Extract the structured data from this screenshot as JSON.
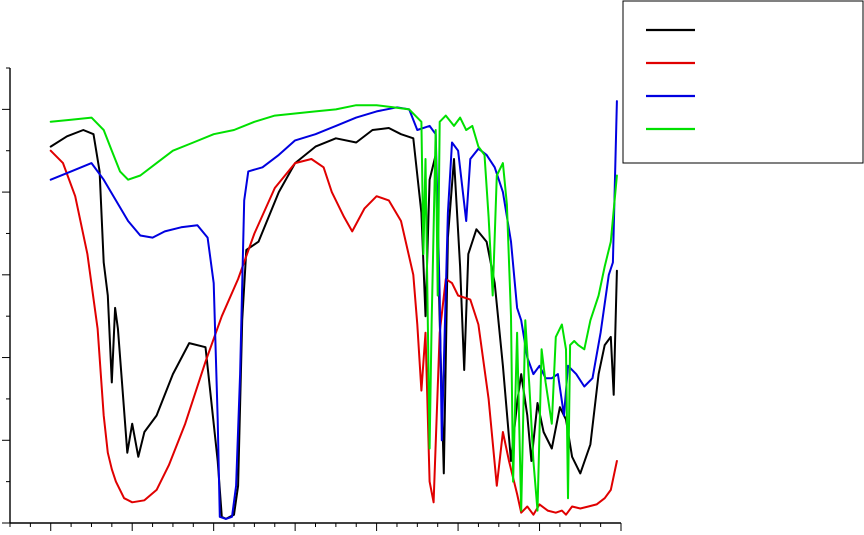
{
  "chart_data": {
    "type": "line",
    "title": "",
    "xlabel": "",
    "ylabel": "",
    "xlim": [
      0,
      15
    ],
    "ylim": [
      0,
      11
    ],
    "x_tick_step": 1,
    "y_tick_step": 1,
    "grid": false,
    "legend_position": "top-right",
    "series": [
      {
        "color": "#000000",
        "points": [
          [
            1,
            9.1
          ],
          [
            1.4,
            9.35
          ],
          [
            1.8,
            9.5
          ],
          [
            2.05,
            9.4
          ],
          [
            2.2,
            8.5
          ],
          [
            2.3,
            6.3
          ],
          [
            2.4,
            5.5
          ],
          [
            2.5,
            3.4
          ],
          [
            2.58,
            5.2
          ],
          [
            2.65,
            4.7
          ],
          [
            2.75,
            3.4
          ],
          [
            2.88,
            1.7
          ],
          [
            3,
            2.4
          ],
          [
            3.15,
            1.6
          ],
          [
            3.3,
            2.2
          ],
          [
            3.6,
            2.6
          ],
          [
            4,
            3.6
          ],
          [
            4.4,
            4.35
          ],
          [
            4.8,
            4.25
          ],
          [
            5.1,
            1.5
          ],
          [
            5.2,
            0.15
          ],
          [
            5.3,
            0.1
          ],
          [
            5.5,
            0.2
          ],
          [
            5.6,
            0.9
          ],
          [
            5.7,
            4.9
          ],
          [
            5.8,
            6.6
          ],
          [
            6.1,
            6.8
          ],
          [
            6.6,
            8.0
          ],
          [
            7,
            8.7
          ],
          [
            7.5,
            9.1
          ],
          [
            8,
            9.3
          ],
          [
            8.5,
            9.2
          ],
          [
            8.9,
            9.5
          ],
          [
            9.3,
            9.55
          ],
          [
            9.6,
            9.4
          ],
          [
            9.9,
            9.3
          ],
          [
            10.1,
            7.5
          ],
          [
            10.2,
            5.0
          ],
          [
            10.3,
            8.3
          ],
          [
            10.45,
            8.9
          ],
          [
            10.55,
            4.9
          ],
          [
            10.65,
            1.2
          ],
          [
            10.75,
            6.9
          ],
          [
            10.9,
            8.8
          ],
          [
            11.05,
            6.2
          ],
          [
            11.15,
            3.7
          ],
          [
            11.25,
            6.5
          ],
          [
            11.45,
            7.1
          ],
          [
            11.7,
            6.8
          ],
          [
            11.9,
            5.8
          ],
          [
            12.1,
            3.8
          ],
          [
            12.3,
            1.5
          ],
          [
            12.45,
            2.9
          ],
          [
            12.55,
            3.6
          ],
          [
            12.7,
            2.6
          ],
          [
            12.8,
            1.5
          ],
          [
            12.95,
            2.9
          ],
          [
            13.1,
            2.2
          ],
          [
            13.3,
            1.8
          ],
          [
            13.5,
            2.8
          ],
          [
            13.65,
            2.5
          ],
          [
            13.8,
            1.6
          ],
          [
            14.0,
            1.2
          ],
          [
            14.25,
            1.9
          ],
          [
            14.45,
            3.6
          ],
          [
            14.6,
            4.3
          ],
          [
            14.75,
            4.5
          ],
          [
            14.82,
            3.1
          ],
          [
            14.9,
            6.1
          ]
        ]
      },
      {
        "color": "#e00000",
        "points": [
          [
            1,
            9.0
          ],
          [
            1.3,
            8.7
          ],
          [
            1.6,
            7.9
          ],
          [
            1.9,
            6.5
          ],
          [
            2.15,
            4.7
          ],
          [
            2.3,
            2.6
          ],
          [
            2.4,
            1.7
          ],
          [
            2.5,
            1.3
          ],
          [
            2.6,
            1.0
          ],
          [
            2.8,
            0.6
          ],
          [
            3.0,
            0.5
          ],
          [
            3.3,
            0.55
          ],
          [
            3.6,
            0.8
          ],
          [
            3.9,
            1.4
          ],
          [
            4.3,
            2.4
          ],
          [
            4.8,
            3.9
          ],
          [
            5.2,
            5.0
          ],
          [
            5.6,
            5.9
          ],
          [
            6.0,
            7.0
          ],
          [
            6.5,
            8.1
          ],
          [
            7,
            8.7
          ],
          [
            7.4,
            8.8
          ],
          [
            7.7,
            8.6
          ],
          [
            7.9,
            8.0
          ],
          [
            8.2,
            7.4
          ],
          [
            8.4,
            7.05
          ],
          [
            8.7,
            7.6
          ],
          [
            9.0,
            7.9
          ],
          [
            9.3,
            7.8
          ],
          [
            9.6,
            7.3
          ],
          [
            9.9,
            6.0
          ],
          [
            10.0,
            4.8
          ],
          [
            10.1,
            3.2
          ],
          [
            10.2,
            4.6
          ],
          [
            10.3,
            1.0
          ],
          [
            10.4,
            0.5
          ],
          [
            10.55,
            4.6
          ],
          [
            10.7,
            5.9
          ],
          [
            10.85,
            5.8
          ],
          [
            11.0,
            5.5
          ],
          [
            11.3,
            5.4
          ],
          [
            11.5,
            4.8
          ],
          [
            11.75,
            3.0
          ],
          [
            11.95,
            0.9
          ],
          [
            12.1,
            2.2
          ],
          [
            12.25,
            1.5
          ],
          [
            12.45,
            0.7
          ],
          [
            12.55,
            0.25
          ],
          [
            12.7,
            0.4
          ],
          [
            12.85,
            0.2
          ],
          [
            13.0,
            0.45
          ],
          [
            13.2,
            0.3
          ],
          [
            13.4,
            0.25
          ],
          [
            13.55,
            0.3
          ],
          [
            13.65,
            0.2
          ],
          [
            13.8,
            0.4
          ],
          [
            14.0,
            0.35
          ],
          [
            14.2,
            0.4
          ],
          [
            14.4,
            0.45
          ],
          [
            14.6,
            0.6
          ],
          [
            14.75,
            0.8
          ],
          [
            14.9,
            1.5
          ]
        ]
      },
      {
        "color": "#0000e0",
        "points": [
          [
            1,
            8.3
          ],
          [
            1.5,
            8.5
          ],
          [
            2.0,
            8.7
          ],
          [
            2.3,
            8.3
          ],
          [
            2.6,
            7.8
          ],
          [
            2.9,
            7.3
          ],
          [
            3.2,
            6.95
          ],
          [
            3.5,
            6.9
          ],
          [
            3.8,
            7.05
          ],
          [
            4.2,
            7.15
          ],
          [
            4.6,
            7.2
          ],
          [
            4.85,
            6.9
          ],
          [
            5.0,
            5.8
          ],
          [
            5.1,
            2.5
          ],
          [
            5.15,
            0.15
          ],
          [
            5.3,
            0.1
          ],
          [
            5.45,
            0.15
          ],
          [
            5.55,
            0.9
          ],
          [
            5.65,
            3.6
          ],
          [
            5.75,
            7.8
          ],
          [
            5.85,
            8.5
          ],
          [
            6.2,
            8.6
          ],
          [
            6.6,
            8.9
          ],
          [
            7,
            9.25
          ],
          [
            7.5,
            9.4
          ],
          [
            8,
            9.6
          ],
          [
            8.5,
            9.8
          ],
          [
            9,
            9.95
          ],
          [
            9.5,
            10.05
          ],
          [
            9.8,
            10.0
          ],
          [
            10.0,
            9.5
          ],
          [
            10.3,
            9.6
          ],
          [
            10.45,
            9.4
          ],
          [
            10.55,
            5.5
          ],
          [
            10.6,
            2.0
          ],
          [
            10.75,
            7.5
          ],
          [
            10.85,
            9.2
          ],
          [
            11.0,
            9.0
          ],
          [
            11.2,
            7.3
          ],
          [
            11.3,
            8.8
          ],
          [
            11.5,
            9.05
          ],
          [
            11.7,
            8.9
          ],
          [
            11.9,
            8.6
          ],
          [
            12.1,
            8.0
          ],
          [
            12.3,
            6.8
          ],
          [
            12.45,
            5.2
          ],
          [
            12.55,
            4.9
          ],
          [
            12.7,
            4.0
          ],
          [
            12.85,
            3.6
          ],
          [
            13.0,
            3.8
          ],
          [
            13.15,
            3.5
          ],
          [
            13.3,
            3.5
          ],
          [
            13.45,
            3.6
          ],
          [
            13.6,
            2.6
          ],
          [
            13.7,
            3.8
          ],
          [
            13.9,
            3.6
          ],
          [
            14.1,
            3.3
          ],
          [
            14.3,
            3.5
          ],
          [
            14.5,
            4.6
          ],
          [
            14.7,
            6.0
          ],
          [
            14.8,
            6.3
          ],
          [
            14.9,
            10.2
          ]
        ]
      },
      {
        "color": "#00e000",
        "points": [
          [
            1,
            9.7
          ],
          [
            1.5,
            9.75
          ],
          [
            2.0,
            9.8
          ],
          [
            2.3,
            9.5
          ],
          [
            2.5,
            9.0
          ],
          [
            2.7,
            8.5
          ],
          [
            2.9,
            8.3
          ],
          [
            3.2,
            8.4
          ],
          [
            3.6,
            8.7
          ],
          [
            4.0,
            9.0
          ],
          [
            4.5,
            9.2
          ],
          [
            5.0,
            9.4
          ],
          [
            5.5,
            9.5
          ],
          [
            6,
            9.7
          ],
          [
            6.5,
            9.85
          ],
          [
            7,
            9.9
          ],
          [
            7.5,
            9.95
          ],
          [
            8,
            10.0
          ],
          [
            8.5,
            10.1
          ],
          [
            9,
            10.1
          ],
          [
            9.4,
            10.05
          ],
          [
            9.8,
            10.0
          ],
          [
            10.1,
            9.7
          ],
          [
            10.15,
            6.5
          ],
          [
            10.2,
            8.8
          ],
          [
            10.3,
            1.8
          ],
          [
            10.35,
            4.8
          ],
          [
            10.45,
            9.5
          ],
          [
            10.5,
            5.5
          ],
          [
            10.55,
            9.7
          ],
          [
            10.7,
            9.85
          ],
          [
            10.9,
            9.6
          ],
          [
            11.05,
            9.8
          ],
          [
            11.2,
            9.5
          ],
          [
            11.35,
            9.6
          ],
          [
            11.5,
            9.1
          ],
          [
            11.65,
            8.9
          ],
          [
            11.75,
            7.4
          ],
          [
            11.85,
            5.5
          ],
          [
            11.95,
            8.4
          ],
          [
            12.1,
            8.7
          ],
          [
            12.2,
            7.7
          ],
          [
            12.3,
            5.0
          ],
          [
            12.35,
            1.0
          ],
          [
            12.45,
            4.6
          ],
          [
            12.55,
            0.3
          ],
          [
            12.65,
            4.9
          ],
          [
            12.75,
            3.3
          ],
          [
            12.85,
            1.5
          ],
          [
            12.95,
            0.3
          ],
          [
            13.05,
            4.2
          ],
          [
            13.15,
            3.4
          ],
          [
            13.3,
            2.4
          ],
          [
            13.4,
            4.5
          ],
          [
            13.55,
            4.8
          ],
          [
            13.65,
            4.2
          ],
          [
            13.7,
            0.6
          ],
          [
            13.75,
            4.3
          ],
          [
            13.85,
            4.4
          ],
          [
            13.95,
            4.3
          ],
          [
            14.1,
            4.2
          ],
          [
            14.25,
            4.9
          ],
          [
            14.45,
            5.5
          ],
          [
            14.6,
            6.2
          ],
          [
            14.75,
            6.8
          ],
          [
            14.9,
            8.4
          ]
        ]
      }
    ]
  }
}
